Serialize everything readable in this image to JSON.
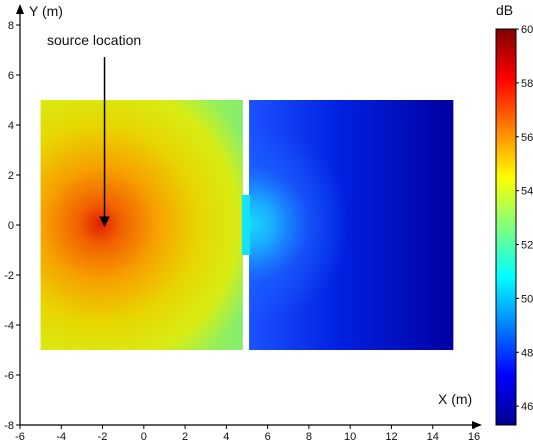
{
  "chart_data": {
    "type": "heatmap",
    "xlabel": "X (m)",
    "ylabel": "Y (m)",
    "xlim": [
      -6,
      16
    ],
    "ylim": [
      -8,
      8.6
    ],
    "xticks": [
      "-6",
      "-4",
      "-2",
      "0",
      "2",
      "4",
      "6",
      "8",
      "10",
      "12",
      "14",
      "16"
    ],
    "yticks": [
      "-8",
      "-6",
      "-4",
      "-2",
      "0",
      "2",
      "4",
      "6",
      "8"
    ],
    "colorbar": {
      "label": "dB",
      "min": 45.3,
      "max": 60,
      "ticks": [
        "46",
        "48",
        "50",
        "52",
        "54",
        "56",
        "58",
        "60"
      ],
      "colormap": "jet"
    },
    "regions": [
      {
        "x": [
          -5,
          4.8
        ],
        "y": [
          -5,
          5
        ],
        "value_range": [
          52,
          55.8
        ]
      },
      {
        "x": [
          5.1,
          15
        ],
        "y": [
          -5,
          5
        ],
        "value_range": [
          45.5,
          50.5
        ]
      }
    ],
    "opening": {
      "x": [
        4.8,
        5.1
      ],
      "y": [
        -1.2,
        1.2
      ],
      "value": 50.5
    },
    "source": {
      "x": -2,
      "y": 0,
      "peak_db": 55.8
    },
    "annotations": [
      {
        "text": "source location",
        "arrow_from": [
          -2,
          8.4
        ],
        "arrow_to": [
          -2,
          0
        ]
      }
    ]
  }
}
